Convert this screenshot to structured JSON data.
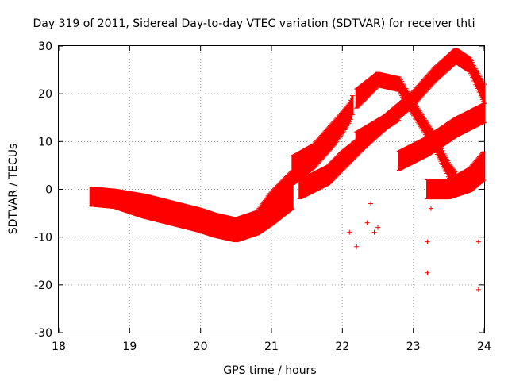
{
  "chart_data": {
    "type": "scatter",
    "title": "Day 319 of 2011, Sidereal Day-to-day VTEC variation (SDTVAR) for receiver thti",
    "xlabel": "GPS time / hours",
    "ylabel": "SDTVAR / TECUs",
    "xlim": [
      18,
      24
    ],
    "ylim": [
      -30,
      30
    ],
    "xticks": [
      18,
      19,
      20,
      21,
      22,
      23,
      24
    ],
    "yticks": [
      -30,
      -20,
      -10,
      0,
      10,
      20,
      30
    ],
    "grid": true,
    "marker": "+",
    "color": "#ff0000",
    "band_series": [
      {
        "x": [
          18.45,
          18.8,
          19.2,
          19.6,
          20.0,
          20.2,
          20.5,
          20.8,
          21.0,
          21.3
        ],
        "center": [
          -1.5,
          -2.0,
          -3.5,
          -5.0,
          -6.5,
          -7.5,
          -8.5,
          -7.0,
          -4.0,
          0.0
        ],
        "half_width": [
          2.0,
          2.0,
          2.5,
          2.5,
          2.5,
          2.5,
          2.5,
          2.5,
          3.5,
          4.0
        ]
      },
      {
        "x": [
          21.3,
          21.6,
          21.9,
          22.1,
          22.15
        ],
        "center": [
          4.0,
          7.0,
          12.0,
          16.0,
          18.0
        ],
        "half_width": [
          3.0,
          2.5,
          2.5,
          2.0,
          2.0
        ]
      },
      {
        "x": [
          22.2,
          22.5,
          22.8,
          23.0,
          23.3,
          23.5,
          23.6
        ],
        "center": [
          19.0,
          23.0,
          22.0,
          17.0,
          10.0,
          4.0,
          2.0
        ],
        "half_width": [
          2.0,
          1.5,
          1.5,
          1.5,
          1.5,
          1.5,
          1.5
        ]
      },
      {
        "x": [
          22.2,
          22.6,
          23.0,
          23.3,
          23.6,
          23.8,
          24.0
        ],
        "center": [
          10.0,
          14.0,
          19.0,
          24.0,
          28.0,
          26.0,
          20.0
        ],
        "half_width": [
          2.0,
          1.5,
          1.5,
          1.5,
          1.5,
          1.5,
          2.0
        ]
      },
      {
        "x": [
          21.4,
          21.8,
          22.0,
          22.3,
          22.6,
          22.8
        ],
        "center": [
          0.0,
          3.0,
          6.0,
          10.0,
          14.0,
          16.0
        ],
        "half_width": [
          2.0,
          2.0,
          2.0,
          1.5,
          1.5,
          1.5
        ]
      },
      {
        "x": [
          22.8,
          23.2,
          23.6,
          24.0
        ],
        "center": [
          6.0,
          9.0,
          13.0,
          16.0
        ],
        "half_width": [
          2.0,
          2.0,
          2.0,
          2.0
        ]
      },
      {
        "x": [
          23.2,
          23.5,
          23.8,
          24.0
        ],
        "center": [
          0.0,
          0.0,
          2.0,
          5.0
        ],
        "half_width": [
          2.0,
          2.0,
          2.5,
          3.0
        ]
      }
    ],
    "outlier_points": [
      {
        "x": 23.2,
        "y": -11
      },
      {
        "x": 23.2,
        "y": -17.5
      },
      {
        "x": 23.92,
        "y": -21
      },
      {
        "x": 23.92,
        "y": -11
      },
      {
        "x": 22.2,
        "y": -12
      },
      {
        "x": 22.35,
        "y": -7
      },
      {
        "x": 22.45,
        "y": -9
      },
      {
        "x": 22.1,
        "y": -9
      },
      {
        "x": 22.4,
        "y": -3
      },
      {
        "x": 23.25,
        "y": -4
      },
      {
        "x": 22.5,
        "y": -8
      }
    ]
  }
}
